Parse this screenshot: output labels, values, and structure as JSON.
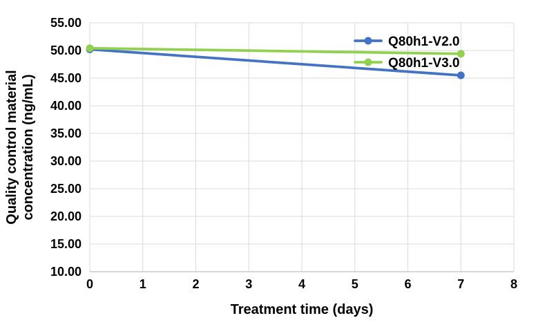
{
  "chart_data": {
    "type": "line",
    "title": "",
    "x": [
      0,
      7
    ],
    "series": [
      {
        "name": "Q80h1-V2.0",
        "color": "#4472C4",
        "values": [
          50.2,
          45.5
        ]
      },
      {
        "name": "Q80h1-V3.0",
        "color": "#92D050",
        "values": [
          50.4,
          49.4
        ]
      }
    ],
    "xlabel": "Treatment time (days)",
    "ylabel": "Quality control material concentration (ng/mL)",
    "ylabel_lines": [
      "Quality control material",
      "concentration (ng/mL)"
    ],
    "xlim": [
      0,
      8
    ],
    "ylim": [
      10,
      55
    ],
    "x_ticks": [
      0,
      1,
      2,
      3,
      4,
      5,
      6,
      7,
      8
    ],
    "y_ticks": [
      55,
      50,
      45,
      40,
      35,
      30,
      25,
      20,
      15,
      10
    ],
    "y_tick_decimals": 2,
    "grid": true,
    "legend_position": "inside-top-right",
    "gridline_color": "#D9D9D9",
    "axis_line_color": "#BFBFBF",
    "text_color": "#000000",
    "background_color": "#FFFFFF"
  }
}
